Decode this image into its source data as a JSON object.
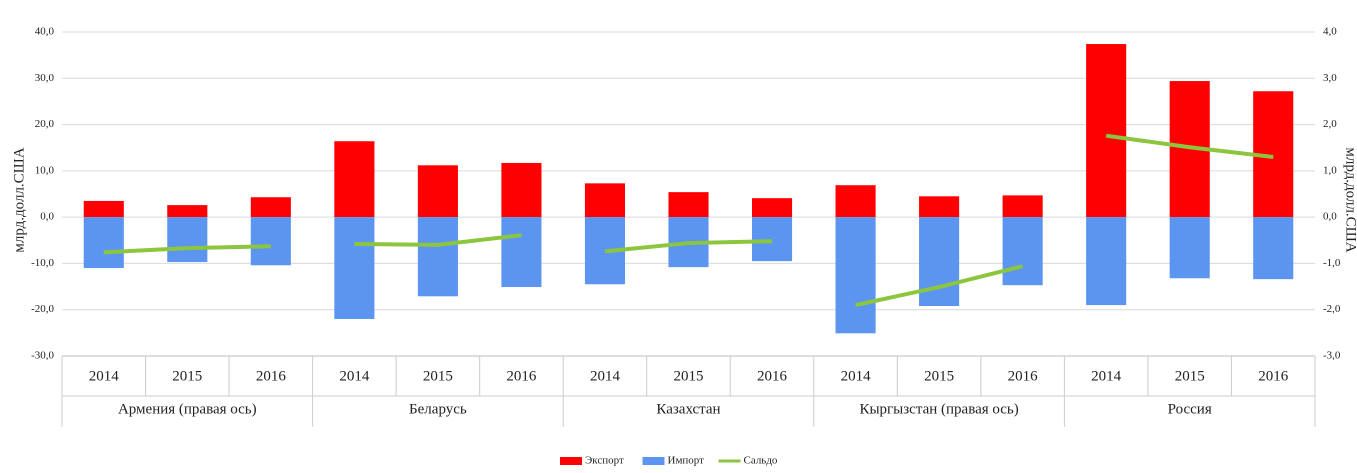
{
  "chart_data": {
    "type": "bar",
    "y_label": "млрд.долл.США",
    "y2_label": "млрд.долл.США",
    "categories": [
      "2014",
      "2015",
      "2016",
      "2014",
      "2015",
      "2016",
      "2014",
      "2015",
      "2016",
      "2014",
      "2015",
      "2016",
      "2014",
      "2015",
      "2016"
    ],
    "groups": [
      {
        "name": "Армения (правая ось)",
        "axis": "y2"
      },
      {
        "name": "Беларусь",
        "axis": "y"
      },
      {
        "name": "Казахстан",
        "axis": "y"
      },
      {
        "name": "Кыргызстан (правая ось)",
        "axis": "y2"
      },
      {
        "name": "Россия",
        "axis": "y"
      }
    ],
    "series": [
      {
        "name": "Экспорт",
        "type": "bar",
        "color": "#ff0000",
        "values": [
          0.35,
          0.26,
          0.43,
          16.4,
          11.2,
          11.7,
          7.3,
          5.4,
          4.1,
          0.69,
          0.45,
          0.47,
          37.4,
          29.4,
          27.2
        ]
      },
      {
        "name": "Импорт",
        "type": "bar",
        "color": "#5b95f0",
        "values": [
          -1.1,
          -0.97,
          -1.04,
          -22.0,
          -17.1,
          -15.1,
          -14.5,
          -10.8,
          -9.5,
          -2.51,
          -1.92,
          -1.47,
          -19.0,
          -13.2,
          -13.4
        ]
      },
      {
        "name": "Сальдо",
        "type": "line",
        "color": "#8cc63e",
        "values": [
          -0.76,
          -0.67,
          -0.63,
          -5.8,
          -6.0,
          -3.9,
          -7.4,
          -5.6,
          -5.2,
          -1.9,
          -1.51,
          -1.06,
          17.6,
          15.1,
          13.0
        ]
      }
    ],
    "ylim": [
      -30,
      40
    ],
    "yticks": [
      {
        "value": -30,
        "label": "-30,0"
      },
      {
        "value": -20,
        "label": "-20,0"
      },
      {
        "value": -10,
        "label": "-10,0"
      },
      {
        "value": 0,
        "label": "0,0"
      },
      {
        "value": 10,
        "label": "10,0"
      },
      {
        "value": 20,
        "label": "20,0"
      },
      {
        "value": 30,
        "label": "30,0"
      },
      {
        "value": 40,
        "label": "40,0"
      }
    ],
    "y2lim": [
      -3,
      4
    ],
    "y2ticks": [
      {
        "value": -3,
        "label": "-3,0"
      },
      {
        "value": -2,
        "label": "-2,0"
      },
      {
        "value": -1,
        "label": "-1,0"
      },
      {
        "value": 0,
        "label": "0,0"
      },
      {
        "value": 1,
        "label": "1,0"
      },
      {
        "value": 2,
        "label": "2,0"
      },
      {
        "value": 3,
        "label": "3,0"
      },
      {
        "value": 4,
        "label": "4,0"
      }
    ],
    "grid": true,
    "legend": "bottom"
  }
}
